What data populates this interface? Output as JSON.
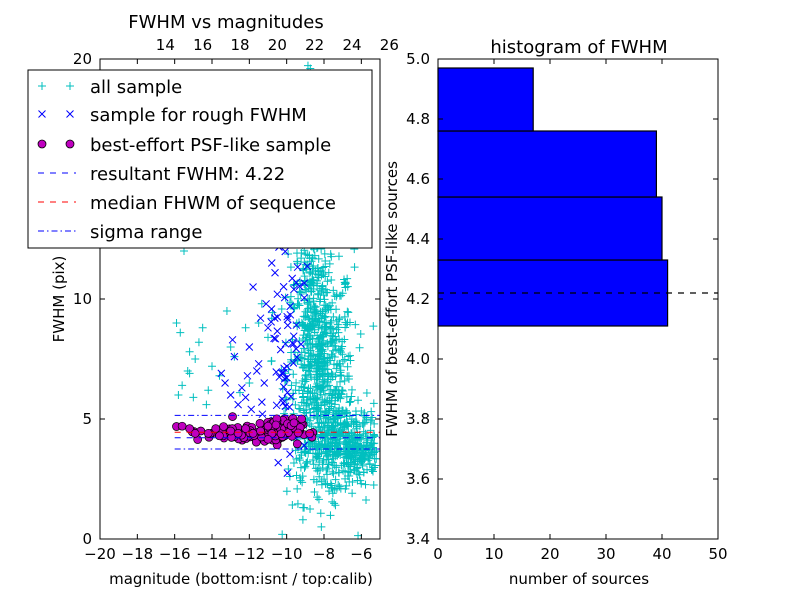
{
  "chart_data": [
    {
      "type": "scatter",
      "title": "FWHM vs magnitudes",
      "xlabel": "magnitude (bottom:isnt / top:calib)",
      "ylabel": "FWHM (pix)",
      "xlim": [
        -20,
        -5
      ],
      "ylim": [
        0,
        20
      ],
      "x_ticks": [
        -20,
        -18,
        -16,
        -14,
        -12,
        -10,
        -8,
        -6
      ],
      "x_tick_labels": [
        "−20",
        "−18",
        "−16",
        "−14",
        "−12",
        "−10",
        "−8",
        "−6"
      ],
      "y_ticks": [
        0,
        5,
        10,
        20
      ],
      "y_tick_labels": [
        "0",
        "5",
        "10",
        "20"
      ],
      "top_axis_ticks": [
        14,
        16,
        18,
        20,
        22,
        24,
        26
      ],
      "top_axis_offset": 30.5,
      "legend_location": "upper-left",
      "series": [
        {
          "name": "all sample",
          "marker": "plus",
          "color": "#00bfbf",
          "clusters": [
            {
              "x_center": -8.2,
              "x_spread": 0.9,
              "y_center": 6.8,
              "y_spread": 2.6,
              "count": 700
            },
            {
              "x_center": -8.8,
              "x_spread": 0.5,
              "y_center": 11.5,
              "y_spread": 2.8,
              "count": 200
            },
            {
              "x_center": -7.0,
              "x_spread": 1.0,
              "y_center": 4.0,
              "y_spread": 0.8,
              "count": 300
            },
            {
              "x_center": -6.0,
              "x_spread": 0.6,
              "y_center": 3.5,
              "y_spread": 0.5,
              "count": 120
            },
            {
              "x_center": -8.5,
              "x_spread": 0.8,
              "y_center": 17.0,
              "y_spread": 2.0,
              "count": 60
            }
          ],
          "points": [
            [
              -15.7,
              8.6
            ],
            [
              -15.2,
              7.8
            ],
            [
              -14.5,
              8.8
            ],
            [
              -15.6,
              6.4
            ],
            [
              -14.9,
              7.5
            ],
            [
              -15.2,
              6.9
            ],
            [
              -15.5,
              12.0
            ],
            [
              -13.0,
              8.0
            ],
            [
              -12.0,
              6.5
            ],
            [
              -15.0,
              5.9
            ],
            [
              -14.0,
              7.2
            ],
            [
              -15.3,
              7.0
            ],
            [
              -13.6,
              6.8
            ],
            [
              -12.8,
              7.6
            ],
            [
              -14.2,
              6.2
            ],
            [
              -11.5,
              9.0
            ],
            [
              -15.8,
              6.0
            ],
            [
              -12.5,
              6.1
            ],
            [
              -13.2,
              9.5
            ],
            [
              -11.0,
              8.4
            ],
            [
              -14.7,
              8.2
            ],
            [
              -10.8,
              9.2
            ],
            [
              -15.9,
              9.0
            ],
            [
              -14.3,
              5.6
            ],
            [
              -12.2,
              8.8
            ]
          ]
        },
        {
          "name": "sample for rough FWHM",
          "marker": "x",
          "color": "#0000ff",
          "clusters": [
            {
              "x_center": -10.0,
              "x_spread": 0.5,
              "y_center": 9.0,
              "y_spread": 2.8,
              "count": 75
            }
          ],
          "points": [
            [
              -11.5,
              7.3
            ],
            [
              -12.0,
              8.0
            ],
            [
              -12.8,
              7.6
            ],
            [
              -13.5,
              6.9
            ],
            [
              -11.0,
              8.8
            ],
            [
              -11.8,
              10.5
            ],
            [
              -10.8,
              11.5
            ],
            [
              -11.2,
              6.5
            ],
            [
              -12.4,
              6.3
            ],
            [
              -10.6,
              13.2
            ],
            [
              -11.4,
              9.2
            ],
            [
              -12.2,
              5.9
            ],
            [
              -10.4,
              14.5
            ],
            [
              -11.6,
              7.0
            ],
            [
              -13.0,
              6.0
            ],
            [
              -12.6,
              5.6
            ],
            [
              -10.9,
              12.4
            ],
            [
              -11.9,
              5.4
            ],
            [
              -10.3,
              16.0
            ],
            [
              -12.9,
              8.3
            ],
            [
              -11.1,
              9.8
            ],
            [
              -12.1,
              6.8
            ],
            [
              -13.3,
              6.5
            ],
            [
              -10.5,
              10.2
            ],
            [
              -11.3,
              5.2
            ]
          ]
        },
        {
          "name": "best-effort PSF-like sample",
          "marker": "circle",
          "color": "#bf00bf",
          "clusters": [
            {
              "x_center": -10.6,
              "x_spread": 0.7,
              "y_center": 4.5,
              "y_spread": 0.25,
              "count": 110
            },
            {
              "x_center": -12.8,
              "x_spread": 1.2,
              "y_center": 4.4,
              "y_spread": 0.18,
              "count": 40
            }
          ],
          "points": [
            [
              -15.6,
              4.7
            ],
            [
              -15.2,
              4.6
            ],
            [
              -14.6,
              4.5
            ],
            [
              -14.2,
              4.4
            ],
            [
              -13.8,
              4.6
            ],
            [
              -13.4,
              4.3
            ],
            [
              -13.0,
              4.5
            ],
            [
              -12.6,
              4.4
            ],
            [
              -12.2,
              4.6
            ],
            [
              -11.8,
              4.4
            ],
            [
              -11.4,
              4.5
            ],
            [
              -12.9,
              5.1
            ],
            [
              -11.0,
              4.7
            ],
            [
              -14.9,
              4.4
            ],
            [
              -13.6,
              4.3
            ]
          ]
        }
      ],
      "reference_lines": [
        {
          "name": "resultant FWHM: 4.22",
          "y": 4.22,
          "x_from": -16.0,
          "x_to": -5.0,
          "color": "#0000ff",
          "style": "dashed"
        },
        {
          "name": "median FHWM of sequence",
          "y": 4.45,
          "x_from": -16.0,
          "x_to": -5.0,
          "color": "#ff0000",
          "style": "dashed"
        },
        {
          "name": "sigma range",
          "y": 5.15,
          "x_from": -16.0,
          "x_to": -5.0,
          "color": "#0000ff",
          "style": "dashdot"
        },
        {
          "y": 3.75,
          "x_from": -16.0,
          "x_to": -5.0,
          "color": "#0000ff",
          "style": "dashdot"
        }
      ]
    },
    {
      "type": "bar",
      "orientation": "horizontal",
      "title": "histogram of FWHM",
      "xlabel": "number of sources",
      "ylabel": "FWHM of best-effort PSF-like sources",
      "xlim": [
        0,
        50
      ],
      "ylim": [
        3.4,
        5.0
      ],
      "x_ticks": [
        0,
        10,
        20,
        30,
        40,
        50
      ],
      "x_tick_labels": [
        "0",
        "10",
        "20",
        "30",
        "40",
        "50"
      ],
      "y_ticks": [
        3.4,
        3.6,
        3.8,
        4.0,
        4.2,
        4.4,
        4.6,
        4.8,
        5.0
      ],
      "y_tick_labels": [
        "3.4",
        "3.6",
        "3.8",
        "4.0",
        "4.2",
        "4.4",
        "4.6",
        "4.8",
        "5.0"
      ],
      "bar_color": "#0000ff",
      "bins": [
        {
          "from": 4.11,
          "to": 4.33,
          "count": 41
        },
        {
          "from": 4.33,
          "to": 4.54,
          "count": 40
        },
        {
          "from": 4.54,
          "to": 4.76,
          "count": 39
        },
        {
          "from": 4.76,
          "to": 4.97,
          "count": 17
        }
      ],
      "reference_line": {
        "y": 4.22,
        "color": "#000000",
        "style": "dashed"
      }
    }
  ]
}
